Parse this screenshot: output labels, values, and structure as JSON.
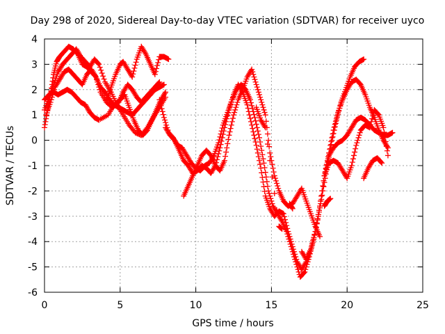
{
  "chart_data": {
    "type": "scatter",
    "title": "Day 298 of 2020, Sidereal Day-to-day VTEC variation (SDTVAR) for receiver uyco",
    "xlabel": "GPS time / hours",
    "ylabel": "SDTVAR / TECUs",
    "xlim": [
      0,
      25
    ],
    "ylim": [
      -6,
      4
    ],
    "xticks": [
      0,
      5,
      10,
      15,
      20,
      25
    ],
    "yticks": [
      -6,
      -5,
      -4,
      -3,
      -2,
      -1,
      0,
      1,
      2,
      3,
      4
    ],
    "grid": true,
    "marker": "+",
    "color": "#ff0000",
    "series": [
      {
        "x": [
          0.0,
          0.2,
          0.4,
          0.6,
          0.8,
          1.0,
          1.3,
          1.6,
          1.9,
          2.2,
          2.5,
          2.8,
          3.1,
          3.4,
          3.7,
          4.0,
          4.3,
          4.6,
          4.9,
          5.2,
          5.5,
          5.8,
          6.1,
          6.4,
          6.7,
          7.0,
          7.3,
          7.6,
          7.9
        ],
        "y": [
          0.5,
          1.2,
          1.8,
          2.6,
          3.1,
          3.3,
          3.5,
          3.7,
          3.6,
          3.4,
          3.0,
          2.9,
          2.7,
          2.5,
          2.1,
          1.9,
          1.6,
          1.4,
          1.3,
          1.2,
          1.1,
          1.0,
          1.2,
          1.4,
          1.6,
          1.8,
          2.0,
          2.1,
          2.2
        ]
      },
      {
        "x": [
          0.0,
          0.3,
          0.6,
          0.9,
          1.2,
          1.5,
          1.8,
          2.1,
          2.4,
          2.7,
          3.0,
          3.3,
          3.6,
          4.0,
          4.4,
          4.8,
          5.2,
          5.6,
          6.0,
          6.4,
          6.8,
          7.2,
          7.6,
          8.0
        ],
        "y": [
          1.2,
          1.7,
          2.2,
          2.7,
          3.0,
          3.2,
          3.4,
          3.6,
          3.3,
          3.1,
          2.9,
          3.2,
          3.0,
          2.3,
          1.9,
          1.4,
          1.0,
          0.6,
          0.3,
          0.2,
          0.5,
          0.9,
          1.3,
          1.7
        ]
      },
      {
        "x": [
          0.0,
          0.3,
          0.6,
          0.9,
          1.2,
          1.5,
          1.8,
          2.1,
          2.4,
          2.7,
          3.0,
          3.3,
          3.6,
          4.2,
          4.6,
          5.0,
          5.3,
          5.6,
          5.9,
          6.2,
          6.5,
          6.8,
          7.1,
          7.4,
          7.7,
          8.0
        ],
        "y": [
          1.6,
          1.8,
          1.9,
          1.8,
          1.9,
          2.0,
          1.9,
          1.7,
          1.5,
          1.4,
          1.1,
          0.9,
          0.8,
          1.0,
          1.4,
          1.6,
          1.8,
          1.3,
          0.8,
          0.4,
          0.2,
          0.4,
          0.8,
          1.2,
          1.6,
          1.9
        ]
      },
      {
        "x": [
          0.1,
          0.4,
          0.7,
          1.0,
          1.3,
          1.6,
          1.9,
          2.2,
          2.5,
          2.8,
          3.1,
          3.4,
          3.7,
          4.1,
          4.5,
          4.9,
          5.2,
          5.5,
          5.8,
          6.1,
          6.4,
          6.7,
          7.0,
          7.3,
          7.6
        ],
        "y": [
          1.0,
          1.5,
          2.1,
          2.4,
          2.7,
          2.8,
          2.6,
          2.4,
          2.2,
          2.6,
          2.8,
          2.5,
          1.9,
          1.5,
          1.3,
          1.5,
          1.9,
          2.2,
          2.0,
          1.7,
          1.5,
          1.7,
          1.9,
          2.1,
          2.3
        ]
      },
      {
        "x": [
          4.1,
          4.4,
          4.7,
          5.0,
          5.2,
          5.5,
          5.8,
          6.1,
          6.4,
          6.7,
          7.0,
          7.3,
          7.6,
          7.9,
          8.2
        ],
        "y": [
          1.6,
          2.1,
          2.6,
          3.0,
          3.1,
          2.8,
          2.5,
          3.2,
          3.7,
          3.4,
          3.0,
          2.6,
          3.3,
          3.3,
          3.2
        ]
      },
      {
        "x": [
          7.6,
          7.9,
          8.2,
          8.5,
          8.8,
          9.1,
          9.4,
          9.7,
          10.0,
          10.3,
          10.6,
          10.9,
          11.2,
          11.5,
          11.8,
          12.1,
          12.4,
          12.7,
          13.0,
          13.3,
          13.6,
          13.9,
          14.2,
          14.5,
          14.8,
          15.1,
          15.4,
          15.7,
          16.0,
          16.3,
          16.6,
          16.9,
          17.2,
          17.5,
          17.8,
          18.1,
          18.4,
          18.7,
          19.0,
          19.3,
          19.6,
          19.9,
          20.2,
          20.5,
          20.8,
          21.1
        ],
        "y": [
          1.6,
          0.9,
          0.3,
          0.1,
          -0.2,
          -0.3,
          -0.6,
          -0.9,
          -1.1,
          -1.2,
          -1.0,
          -0.9,
          -0.6,
          -0.1,
          0.6,
          1.1,
          1.6,
          2.0,
          2.2,
          2.0,
          1.6,
          0.9,
          0.1,
          -0.9,
          -2.0,
          -2.6,
          -2.9,
          -3.2,
          -3.6,
          -4.2,
          -4.8,
          -5.4,
          -5.2,
          -4.6,
          -3.9,
          -3.0,
          -2.0,
          -1.0,
          0.0,
          0.8,
          1.5,
          2.0,
          2.5,
          2.9,
          3.1,
          3.2
        ]
      },
      {
        "x": [
          8.0,
          8.3,
          8.6,
          8.9,
          9.2,
          9.5,
          9.8,
          10.1,
          10.4,
          10.7,
          11.0,
          11.3,
          11.6,
          11.9,
          12.2,
          12.5,
          12.8,
          13.1,
          13.4,
          13.7,
          14.0,
          14.3,
          14.6,
          14.9,
          15.2,
          15.5,
          15.8,
          16.1,
          16.4,
          16.7,
          17.0,
          17.3,
          17.6,
          17.9,
          18.2,
          18.5,
          18.8,
          19.1,
          19.4,
          19.7,
          20.0,
          20.3,
          20.6,
          20.9,
          21.2,
          21.5,
          21.8,
          22.1,
          22.4,
          22.7
        ],
        "y": [
          0.5,
          0.2,
          0.0,
          -0.4,
          -0.8,
          -1.0,
          -1.3,
          -1.2,
          -1.0,
          -1.1,
          -1.3,
          -1.0,
          -0.3,
          0.5,
          1.2,
          1.8,
          2.2,
          1.9,
          1.4,
          0.6,
          -0.2,
          -1.1,
          -2.2,
          -2.7,
          -3.0,
          -2.8,
          -2.9,
          -3.6,
          -4.2,
          -4.8,
          -5.1,
          -4.8,
          -4.3,
          -3.6,
          -2.6,
          -1.4,
          -0.5,
          0.4,
          1.1,
          1.6,
          2.0,
          2.3,
          2.4,
          2.2,
          1.8,
          1.3,
          0.9,
          0.4,
          0.0,
          -0.3
        ]
      },
      {
        "x": [
          9.2,
          9.5,
          9.8,
          10.1,
          10.4,
          10.7,
          11.0,
          11.3,
          11.6,
          11.9,
          12.2,
          12.5,
          12.8,
          13.1,
          13.4,
          13.7,
          14.0,
          14.3,
          14.6,
          14.9,
          15.2,
          15.5,
          15.8,
          16.1,
          16.4,
          16.7,
          17.0,
          17.3,
          17.6,
          17.9,
          18.2
        ],
        "y": [
          -2.2,
          -1.8,
          -1.4,
          -1.0,
          -0.6,
          -0.4,
          -0.6,
          -1.0,
          -1.2,
          -0.8,
          0.2,
          1.0,
          1.6,
          2.0,
          2.5,
          2.8,
          2.2,
          1.6,
          1.0,
          -0.5,
          -1.4,
          -2.0,
          -2.4,
          -2.6,
          -2.5,
          -2.2,
          -1.9,
          -2.4,
          -2.9,
          -3.4,
          -3.8
        ]
      },
      {
        "x": [
          17.0,
          17.3,
          17.6,
          17.9,
          18.2,
          18.5,
          18.8,
          19.1,
          19.4,
          19.7,
          20.0,
          20.3,
          20.6,
          20.9,
          21.2,
          21.5,
          21.8,
          22.1,
          22.4,
          22.7,
          23.0
        ],
        "y": [
          -4.4,
          -4.7,
          -4.3,
          -3.6,
          -2.6,
          -1.4,
          -0.6,
          -0.3,
          -0.1,
          0.0,
          0.2,
          0.5,
          0.8,
          0.9,
          0.8,
          0.6,
          0.4,
          0.3,
          0.2,
          0.2,
          0.3
        ]
      },
      {
        "x": [
          18.5,
          18.8,
          19.1,
          19.4,
          19.7,
          20.0,
          20.3,
          20.6,
          20.9,
          21.2,
          21.5,
          21.8,
          22.1,
          22.4,
          22.7
        ],
        "y": [
          -1.4,
          -0.9,
          -0.8,
          -0.9,
          -1.2,
          -1.5,
          -1.0,
          -0.2,
          0.4,
          0.6,
          0.5,
          1.2,
          1.0,
          0.5,
          -0.6
        ]
      },
      {
        "x": [
          21.1,
          21.4,
          21.7,
          22.0,
          22.3
        ],
        "y": [
          -1.5,
          -1.1,
          -0.8,
          -0.7,
          -0.9
        ]
      },
      {
        "x": [
          14.0,
          14.3,
          14.6,
          15.5,
          15.7,
          18.5,
          18.7,
          18.9,
          16.2,
          16.4
        ],
        "y": [
          1.3,
          0.8,
          0.5,
          -3.4,
          -3.5,
          -2.6,
          -2.4,
          -2.3,
          -2.5,
          -2.7
        ]
      }
    ]
  }
}
